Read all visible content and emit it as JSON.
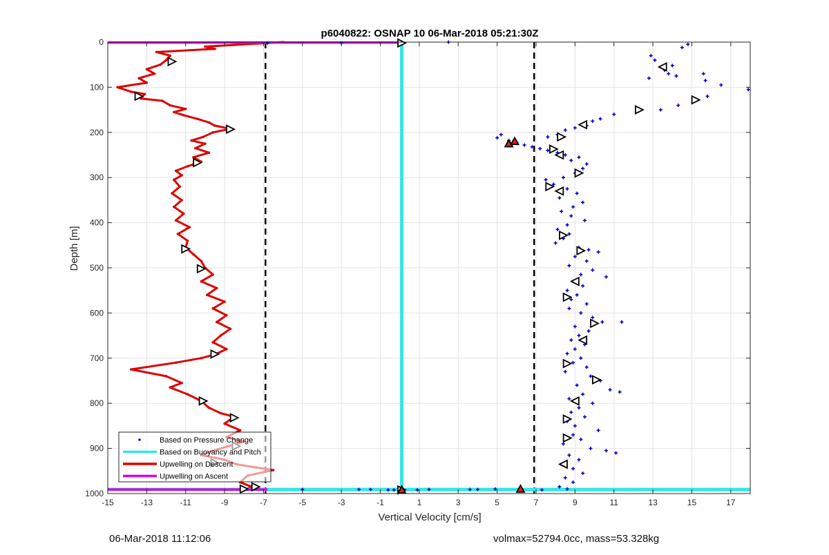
{
  "chart_data": {
    "type": "scatter",
    "title": "p6040822: OSNAP 10 06-Mar-2018 05:21:30Z",
    "xlabel": "Vertical Velocity [cm/s]",
    "ylabel": "Depth [m]",
    "xlim": [
      -15,
      18
    ],
    "ylim": [
      0,
      1000
    ],
    "y_reversed": true,
    "grid": true,
    "legend_position": "bottom-left",
    "xticks": [
      -15,
      -13,
      -11,
      -9,
      -7,
      -5,
      -3,
      -1,
      1,
      3,
      5,
      7,
      9,
      11,
      13,
      15,
      17
    ],
    "yticks": [
      0,
      100,
      200,
      300,
      400,
      500,
      600,
      700,
      800,
      900,
      1000
    ],
    "threshold_lines": [
      -6.9,
      6.9
    ],
    "series": [
      {
        "name": "Based on Pressure Change",
        "color": "#0000cc",
        "marker": "dot",
        "points": [
          [
            14.8,
            5
          ],
          [
            14.5,
            12
          ],
          [
            12.9,
            30
          ],
          [
            13.1,
            40
          ],
          [
            14.0,
            52
          ],
          [
            13.6,
            62
          ],
          [
            13.8,
            70
          ],
          [
            12.8,
            80
          ],
          [
            14.2,
            75
          ],
          [
            15.6,
            70
          ],
          [
            15.7,
            85
          ],
          [
            16.5,
            95
          ],
          [
            17.9,
            105
          ],
          [
            15.8,
            120
          ],
          [
            15.1,
            130
          ],
          [
            14.3,
            140
          ],
          [
            13.4,
            150
          ],
          [
            11.0,
            160
          ],
          [
            10.3,
            170
          ],
          [
            9.9,
            175
          ],
          [
            9.6,
            185
          ],
          [
            9.0,
            190
          ],
          [
            8.5,
            195
          ],
          [
            8.1,
            205
          ],
          [
            7.6,
            210
          ],
          [
            5.2,
            205
          ],
          [
            5.0,
            212
          ],
          [
            5.6,
            218
          ],
          [
            6.0,
            222
          ],
          [
            6.4,
            228
          ],
          [
            6.8,
            232
          ],
          [
            7.2,
            236
          ],
          [
            7.6,
            240
          ],
          [
            8.1,
            245
          ],
          [
            8.5,
            250
          ],
          [
            9.2,
            255
          ],
          [
            8.8,
            262
          ],
          [
            9.6,
            270
          ],
          [
            9.4,
            280
          ],
          [
            9.0,
            290
          ],
          [
            8.4,
            300
          ],
          [
            7.5,
            305
          ],
          [
            7.9,
            315
          ],
          [
            8.6,
            325
          ],
          [
            9.1,
            335
          ],
          [
            8.2,
            345
          ],
          [
            9.4,
            355
          ],
          [
            8.9,
            365
          ],
          [
            8.3,
            375
          ],
          [
            8.8,
            385
          ],
          [
            9.5,
            395
          ],
          [
            8.6,
            405
          ],
          [
            8.1,
            415
          ],
          [
            8.7,
            425
          ],
          [
            8.4,
            435
          ],
          [
            8.0,
            445
          ],
          [
            9.2,
            455
          ],
          [
            9.7,
            460
          ],
          [
            10.2,
            465
          ],
          [
            9.0,
            475
          ],
          [
            9.6,
            485
          ],
          [
            8.7,
            495
          ],
          [
            9.9,
            505
          ],
          [
            9.3,
            515
          ],
          [
            10.6,
            520
          ],
          [
            8.9,
            530
          ],
          [
            9.4,
            540
          ],
          [
            8.6,
            550
          ],
          [
            9.1,
            560
          ],
          [
            8.8,
            570
          ],
          [
            9.6,
            580
          ],
          [
            8.7,
            590
          ],
          [
            9.3,
            600
          ],
          [
            9.9,
            610
          ],
          [
            10.4,
            620
          ],
          [
            9.0,
            630
          ],
          [
            9.7,
            640
          ],
          [
            11.4,
            620
          ],
          [
            9.2,
            650
          ],
          [
            8.8,
            660
          ],
          [
            9.5,
            670
          ],
          [
            9.0,
            680
          ],
          [
            8.6,
            690
          ],
          [
            9.3,
            700
          ],
          [
            8.9,
            710
          ],
          [
            9.6,
            720
          ],
          [
            8.5,
            730
          ],
          [
            9.8,
            740
          ],
          [
            10.3,
            750
          ],
          [
            9.1,
            760
          ],
          [
            10.8,
            770
          ],
          [
            11.3,
            775
          ],
          [
            9.4,
            780
          ],
          [
            8.7,
            790
          ],
          [
            9.9,
            800
          ],
          [
            9.2,
            810
          ],
          [
            8.8,
            820
          ],
          [
            9.5,
            830
          ],
          [
            8.6,
            840
          ],
          [
            9.0,
            850
          ],
          [
            10.2,
            860
          ],
          [
            8.9,
            870
          ],
          [
            9.3,
            880
          ],
          [
            8.4,
            890
          ],
          [
            9.8,
            900
          ],
          [
            10.6,
            905
          ],
          [
            11.1,
            910
          ],
          [
            8.7,
            915
          ],
          [
            9.2,
            925
          ],
          [
            8.3,
            935
          ],
          [
            8.9,
            945
          ],
          [
            9.4,
            955
          ],
          [
            8.5,
            965
          ],
          [
            8.9,
            975
          ],
          [
            8.2,
            985
          ],
          [
            8.6,
            990
          ],
          [
            7.3,
            992
          ],
          [
            2.5,
            0
          ],
          [
            -6.8,
            2
          ],
          [
            -3.0,
            2
          ],
          [
            -5.0,
            991
          ],
          [
            -2.1,
            991
          ],
          [
            -1.5,
            991
          ],
          [
            -0.6,
            992
          ],
          [
            -0.3,
            992
          ],
          [
            0.9,
            992
          ],
          [
            1.5,
            991
          ],
          [
            3.6,
            991
          ],
          [
            4.0,
            991
          ],
          [
            4.9,
            990
          ]
        ]
      },
      {
        "name": "Based on Buoyancy and Pitch",
        "color": "#33e6e6",
        "segments": [
          [
            [
              -15,
              991
            ],
            [
              18,
              991
            ]
          ],
          [
            [
              0.1,
              0
            ],
            [
              0.1,
              991
            ]
          ]
        ]
      },
      {
        "name": "Upwelling on Descent",
        "color": "#dd0000",
        "points": [
          [
            -6.0,
            0
          ],
          [
            -10.0,
            10
          ],
          [
            -9.5,
            15
          ],
          [
            -12.5,
            22
          ],
          [
            -11.8,
            30
          ],
          [
            -12.0,
            40
          ],
          [
            -12.3,
            50
          ],
          [
            -13.0,
            60
          ],
          [
            -12.6,
            70
          ],
          [
            -13.4,
            80
          ],
          [
            -13.0,
            90
          ],
          [
            -14.5,
            100
          ],
          [
            -13.8,
            110
          ],
          [
            -13.1,
            115
          ],
          [
            -13.3,
            125
          ],
          [
            -12.2,
            130
          ],
          [
            -11.8,
            140
          ],
          [
            -11.0,
            148
          ],
          [
            -11.6,
            155
          ],
          [
            -11.1,
            162
          ],
          [
            -10.4,
            170
          ],
          [
            -9.8,
            178
          ],
          [
            -9.5,
            185
          ],
          [
            -8.7,
            192
          ],
          [
            -9.6,
            200
          ],
          [
            -10.1,
            210
          ],
          [
            -10.7,
            218
          ],
          [
            -10.0,
            225
          ],
          [
            -10.5,
            235
          ],
          [
            -9.8,
            245
          ],
          [
            -10.6,
            255
          ],
          [
            -10.2,
            265
          ],
          [
            -10.9,
            275
          ],
          [
            -11.5,
            285
          ],
          [
            -11.2,
            295
          ],
          [
            -11.6,
            305
          ],
          [
            -11.3,
            320
          ],
          [
            -11.7,
            335
          ],
          [
            -11.2,
            350
          ],
          [
            -11.6,
            365
          ],
          [
            -11.1,
            380
          ],
          [
            -11.5,
            395
          ],
          [
            -10.8,
            410
          ],
          [
            -11.4,
            425
          ],
          [
            -10.9,
            440
          ],
          [
            -11.0,
            455
          ],
          [
            -10.6,
            470
          ],
          [
            -10.2,
            485
          ],
          [
            -10.0,
            500
          ],
          [
            -9.6,
            515
          ],
          [
            -10.2,
            530
          ],
          [
            -9.4,
            545
          ],
          [
            -9.9,
            560
          ],
          [
            -9.0,
            575
          ],
          [
            -9.6,
            590
          ],
          [
            -8.9,
            605
          ],
          [
            -9.4,
            620
          ],
          [
            -8.7,
            635
          ],
          [
            -9.2,
            650
          ],
          [
            -9.6,
            665
          ],
          [
            -8.9,
            680
          ],
          [
            -9.5,
            692
          ],
          [
            -10.2,
            700
          ],
          [
            -11.5,
            710
          ],
          [
            -13.8,
            725
          ],
          [
            -12.0,
            740
          ],
          [
            -11.2,
            755
          ],
          [
            -11.8,
            765
          ],
          [
            -10.9,
            780
          ],
          [
            -10.2,
            795
          ],
          [
            -9.8,
            810
          ],
          [
            -9.2,
            822
          ],
          [
            -8.5,
            830
          ],
          [
            -9.0,
            845
          ],
          [
            -8.2,
            860
          ],
          [
            -8.9,
            875
          ],
          [
            -8.0,
            885
          ],
          [
            -8.8,
            895
          ],
          [
            -9.6,
            905
          ],
          [
            -10.2,
            915
          ],
          [
            -9.0,
            925
          ],
          [
            -8.4,
            935
          ],
          [
            -7.4,
            942
          ],
          [
            -6.5,
            948
          ],
          [
            -7.8,
            960
          ],
          [
            -8.2,
            975
          ],
          [
            -7.6,
            985
          ],
          [
            -8.0,
            992
          ]
        ]
      },
      {
        "name": "Upwelling on Ascent",
        "color": "#dd00dd",
        "segments": [
          [
            [
              -15,
              1
            ],
            [
              0.2,
              1
            ]
          ],
          [
            [
              -15,
              991
            ],
            [
              -6.8,
              991
            ]
          ]
        ]
      }
    ],
    "markers_right": [
      [
        0.1,
        2
      ],
      [
        13.5,
        55
      ],
      [
        15.2,
        128
      ],
      [
        12.3,
        150
      ],
      [
        9.4,
        183
      ],
      [
        8.3,
        210
      ],
      [
        7.9,
        237
      ],
      [
        8.2,
        250
      ],
      [
        9.2,
        290
      ],
      [
        7.7,
        320
      ],
      [
        8.2,
        330
      ],
      [
        8.4,
        428
      ],
      [
        9.3,
        462
      ],
      [
        9.0,
        530
      ],
      [
        8.6,
        565
      ],
      [
        10.0,
        623
      ],
      [
        9.4,
        660
      ],
      [
        8.6,
        712
      ],
      [
        10.1,
        748
      ],
      [
        9.0,
        795
      ],
      [
        8.6,
        835
      ],
      [
        8.6,
        877
      ],
      [
        8.4,
        935
      ],
      [
        0.1,
        992
      ]
    ],
    "markers_left": [
      [
        -11.7,
        43
      ],
      [
        -13.4,
        120
      ],
      [
        -8.7,
        193
      ],
      [
        -10.4,
        267
      ],
      [
        -11.0,
        458
      ],
      [
        -10.2,
        502
      ],
      [
        -9.5,
        691
      ],
      [
        -10.1,
        795
      ],
      [
        -8.5,
        832
      ],
      [
        -8.4,
        895
      ],
      [
        -9.5,
        932
      ],
      [
        -8.0,
        990
      ],
      [
        -7.4,
        985
      ]
    ],
    "markers_red": [
      [
        5.6,
        225
      ],
      [
        5.9,
        220
      ],
      [
        6.2,
        990
      ],
      [
        0.1,
        992
      ]
    ]
  },
  "footer": {
    "left": "06-Mar-2018 11:12:06",
    "right": "volmax=52794.0cc, mass=53.328kg"
  }
}
